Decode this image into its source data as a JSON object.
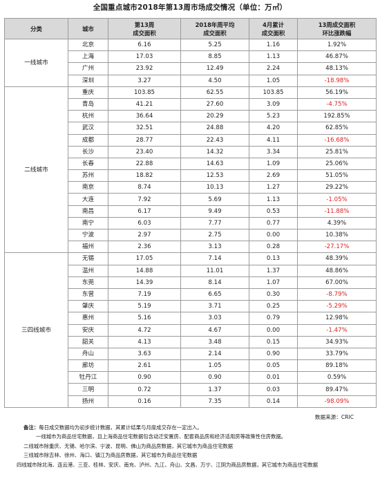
{
  "title": "全国重点城市2018年第13周市场成交情况（单位：万㎡）",
  "headers": {
    "category": "分类",
    "city": "城市",
    "week13_line1": "第13周",
    "week13_line2": "成交面积",
    "avg_line1": "2018年周平均",
    "avg_line2": "成交面积",
    "april_line1": "4月累计",
    "april_line2": "成交面积",
    "change_line1": "13周成交面积",
    "change_line2": "环比涨跌幅"
  },
  "tiers": [
    {
      "name": "一线城市",
      "rows": [
        {
          "city": "北京",
          "week13": "6.16",
          "avg": "5.25",
          "april": "1.16",
          "change": "1.92%",
          "neg": false
        },
        {
          "city": "上海",
          "week13": "17.03",
          "avg": "8.85",
          "april": "1.13",
          "change": "46.87%",
          "neg": false
        },
        {
          "city": "广州",
          "week13": "23.92",
          "avg": "12.49",
          "april": "2.24",
          "change": "48.13%",
          "neg": false
        },
        {
          "city": "深圳",
          "week13": "3.27",
          "avg": "4.50",
          "april": "1.05",
          "change": "-18.98%",
          "neg": true
        }
      ]
    },
    {
      "name": "二线城市",
      "rows": [
        {
          "city": "重庆",
          "week13": "103.85",
          "avg": "62.55",
          "april": "103.85",
          "change": "56.19%",
          "neg": false
        },
        {
          "city": "青岛",
          "week13": "41.21",
          "avg": "27.60",
          "april": "3.09",
          "change": "-4.75%",
          "neg": true
        },
        {
          "city": "杭州",
          "week13": "36.64",
          "avg": "20.29",
          "april": "5.23",
          "change": "192.85%",
          "neg": false
        },
        {
          "city": "武汉",
          "week13": "32.51",
          "avg": "24.88",
          "april": "4.20",
          "change": "62.85%",
          "neg": false
        },
        {
          "city": "成都",
          "week13": "28.77",
          "avg": "22.43",
          "april": "4.11",
          "change": "-16.68%",
          "neg": true
        },
        {
          "city": "长沙",
          "week13": "23.40",
          "avg": "14.32",
          "april": "3.34",
          "change": "25.81%",
          "neg": false
        },
        {
          "city": "长春",
          "week13": "22.88",
          "avg": "14.63",
          "april": "1.09",
          "change": "25.06%",
          "neg": false
        },
        {
          "city": "苏州",
          "week13": "18.82",
          "avg": "12.53",
          "april": "2.69",
          "change": "51.05%",
          "neg": false
        },
        {
          "city": "南京",
          "week13": "8.74",
          "avg": "10.13",
          "april": "1.27",
          "change": "29.22%",
          "neg": false
        },
        {
          "city": "大连",
          "week13": "7.92",
          "avg": "5.69",
          "april": "1.13",
          "change": "-1.05%",
          "neg": true
        },
        {
          "city": "南昌",
          "week13": "6.17",
          "avg": "9.49",
          "april": "0.53",
          "change": "-11.88%",
          "neg": true
        },
        {
          "city": "南宁",
          "week13": "6.03",
          "avg": "7.77",
          "april": "0.77",
          "change": "4.39%",
          "neg": false
        },
        {
          "city": "宁波",
          "week13": "2.97",
          "avg": "2.75",
          "april": "0.00",
          "change": "10.38%",
          "neg": false
        },
        {
          "city": "福州",
          "week13": "2.36",
          "avg": "3.13",
          "april": "0.28",
          "change": "-27.17%",
          "neg": true
        }
      ]
    },
    {
      "name": "三四线城市",
      "rows": [
        {
          "city": "无锡",
          "week13": "17.05",
          "avg": "7.14",
          "april": "0.13",
          "change": "48.39%",
          "neg": false
        },
        {
          "city": "温州",
          "week13": "14.88",
          "avg": "11.01",
          "april": "1.37",
          "change": "48.86%",
          "neg": false
        },
        {
          "city": "东莞",
          "week13": "14.39",
          "avg": "8.14",
          "april": "1.07",
          "change": "67.00%",
          "neg": false
        },
        {
          "city": "东营",
          "week13": "7.19",
          "avg": "6.65",
          "april": "0.30",
          "change": "-8.79%",
          "neg": true
        },
        {
          "city": "肇庆",
          "week13": "5.19",
          "avg": "3.71",
          "april": "0.25",
          "change": "-5.29%",
          "neg": true
        },
        {
          "city": "惠州",
          "week13": "5.16",
          "avg": "3.03",
          "april": "0.79",
          "change": "12.98%",
          "neg": false
        },
        {
          "city": "安庆",
          "week13": "4.72",
          "avg": "4.67",
          "april": "0.00",
          "change": "-1.47%",
          "neg": true
        },
        {
          "city": "韶关",
          "week13": "4.13",
          "avg": "3.48",
          "april": "0.15",
          "change": "34.93%",
          "neg": false
        },
        {
          "city": "舟山",
          "week13": "3.63",
          "avg": "2.14",
          "april": "0.90",
          "change": "33.79%",
          "neg": false
        },
        {
          "city": "廊坊",
          "week13": "2.61",
          "avg": "1.05",
          "april": "0.05",
          "change": "89.18%",
          "neg": false
        },
        {
          "city": "牡丹江",
          "week13": "0.90",
          "avg": "0.90",
          "april": "0.01",
          "change": "0.59%",
          "neg": false
        },
        {
          "city": "三明",
          "week13": "0.72",
          "avg": "1.37",
          "april": "0.03",
          "change": "89.47%",
          "neg": false
        },
        {
          "city": "扬州",
          "week13": "0.16",
          "avg": "7.35",
          "april": "0.14",
          "change": "-98.09%",
          "neg": true
        }
      ]
    }
  ],
  "source": "数据来源：CRIC",
  "notes": {
    "label": "备注：",
    "lines": [
      "每日成交数据均为初步统计数据，其累计结果与月度成交存在一定出入。",
      "一线城市为商品住宅数据，且上海商品住宅数据包含动迁安置房、配套商品房和经济适用房等政策性住房数据。",
      "二线城市除重庆、无锡、哈尔滨、宁波、昆明、佛山为商品房数据，其它城市为商品住宅数据",
      "三线城市除吉林、徐州、海口、镇江为商品房数据，其它城市为商品住宅数据",
      "四线城市除北海、连云港、三亚、桂林、安庆、南充、泸州、九江、舟山、文昌、万宁、江阴为商品房数据，其它城市为商品住宅数据"
    ]
  },
  "colors": {
    "header_bg": "#d9d9d9",
    "negative": "#e02020",
    "border": "#9a9a9a"
  }
}
